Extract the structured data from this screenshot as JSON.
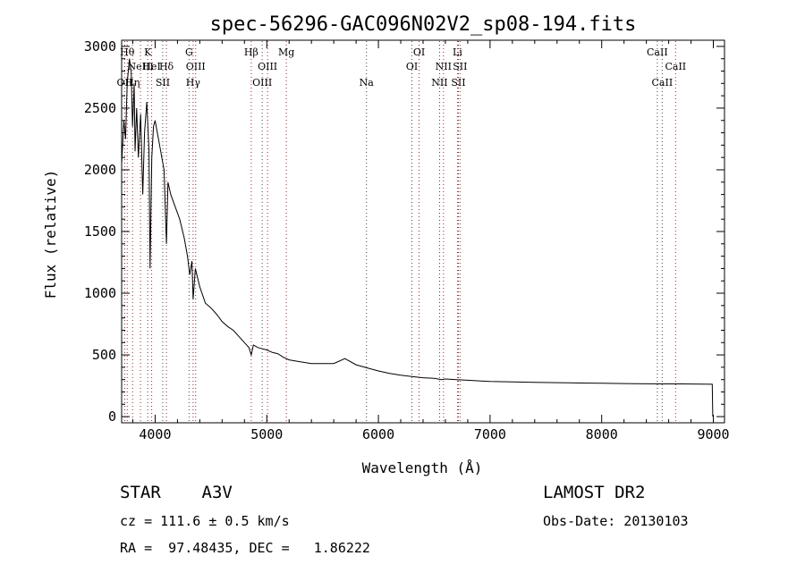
{
  "chart_data": {
    "type": "line",
    "title": "spec-56296-GAC096N02V2_sp08-194.fits",
    "xlabel": "Wavelength (Å)",
    "ylabel": "Flux (relative)",
    "xlim": [
      3700,
      9100
    ],
    "ylim": [
      -50,
      3050
    ],
    "xticks": [
      4000,
      5000,
      6000,
      7000,
      8000,
      9000
    ],
    "yticks": [
      0,
      500,
      1000,
      1500,
      2000,
      2500,
      3000
    ],
    "grid": false,
    "series": [
      {
        "x": [
          3700,
          3720,
          3735,
          3750,
          3770,
          3785,
          3798,
          3812,
          3820,
          3835,
          3850,
          3870,
          3889,
          3905,
          3925,
          3945,
          3955,
          3970,
          3985,
          4000,
          4020,
          4050,
          4080,
          4101,
          4115,
          4140,
          4180,
          4220,
          4260,
          4290,
          4310,
          4330,
          4340,
          4360,
          4400,
          4450,
          4500,
          4550,
          4600,
          4650,
          4700,
          4750,
          4800,
          4840,
          4861,
          4880,
          4920,
          4960,
          5000,
          5050,
          5100,
          5150,
          5200,
          5300,
          5400,
          5500,
          5600,
          5700,
          5800,
          5900,
          6000,
          6100,
          6200,
          6300,
          6400,
          6500,
          6563,
          6600,
          6700,
          6800,
          6900,
          7000,
          7200,
          7400,
          7600,
          7800,
          8000,
          8200,
          8400,
          8600,
          8800,
          8990,
          8995
        ],
        "y": [
          2050,
          2400,
          2250,
          2700,
          2900,
          2800,
          2350,
          2700,
          2150,
          2500,
          2100,
          2450,
          1800,
          2300,
          2550,
          2150,
          1200,
          2100,
          2350,
          2400,
          2300,
          2150,
          2000,
          1400,
          1900,
          1800,
          1700,
          1600,
          1450,
          1300,
          1150,
          1260,
          950,
          1200,
          1050,
          920,
          880,
          830,
          770,
          730,
          700,
          650,
          600,
          560,
          500,
          580,
          560,
          550,
          540,
          520,
          510,
          480,
          460,
          445,
          430,
          430,
          430,
          470,
          420,
          395,
          370,
          350,
          335,
          325,
          315,
          310,
          300,
          305,
          300,
          295,
          290,
          285,
          282,
          278,
          275,
          272,
          270,
          268,
          266,
          265,
          264,
          262,
          0
        ]
      }
    ],
    "lines": [
      {
        "x": 3727,
        "label": "OII",
        "row": 3,
        "style": "dotted",
        "color": "#444444"
      },
      {
        "x": 3750,
        "label": "Hθ",
        "row": 1,
        "style": "dotted",
        "color": "#aa2222"
      },
      {
        "x": 3798,
        "label": "Hη",
        "row": 3,
        "style": "dotted",
        "color": "#aa2222"
      },
      {
        "x": 3869,
        "label": "NeIII",
        "row": 2,
        "style": "dotted",
        "color": "#aa2222"
      },
      {
        "x": 3934,
        "label": "K",
        "row": 1,
        "style": "dotted",
        "color": "#444444"
      },
      {
        "x": 3969,
        "label": "HeI",
        "row": 2,
        "style": "dotted",
        "color": "#aa2222"
      },
      {
        "x": 4068,
        "label": "SII",
        "row": 3,
        "style": "dotted",
        "color": "#444444"
      },
      {
        "x": 4101,
        "label": "Hδ",
        "row": 2,
        "style": "dotted",
        "color": "#aa2222"
      },
      {
        "x": 4304,
        "label": "G",
        "row": 1,
        "style": "dotted",
        "color": "#444444"
      },
      {
        "x": 4340,
        "label": "Hγ",
        "row": 3,
        "style": "dotted",
        "color": "#aa2222"
      },
      {
        "x": 4363,
        "label": "OIII",
        "row": 2,
        "style": "dotted",
        "color": "#444444"
      },
      {
        "x": 4861,
        "label": "Hβ",
        "row": 1,
        "style": "dotted",
        "color": "#aa2222"
      },
      {
        "x": 4959,
        "label": "OIII",
        "row": 3,
        "style": "dotted",
        "color": "#444444"
      },
      {
        "x": 5007,
        "label": "OIII",
        "row": 2,
        "style": "dotted",
        "color": "#aa2222"
      },
      {
        "x": 5175,
        "label": "Mg",
        "row": 1,
        "style": "dotted",
        "color": "#aa2222"
      },
      {
        "x": 5893,
        "label": "Na",
        "row": 3,
        "style": "dotted",
        "color": "#444444"
      },
      {
        "x": 6300,
        "label": "OI",
        "row": 2,
        "style": "dotted",
        "color": "#444444"
      },
      {
        "x": 6364,
        "label": "OI",
        "row": 1,
        "style": "dotted",
        "color": "#aa2222"
      },
      {
        "x": 6548,
        "label": "NII",
        "row": 3,
        "style": "dotted",
        "color": "#444444"
      },
      {
        "x": 6583,
        "label": "NII",
        "row": 2,
        "style": "dotted",
        "color": "#aa2222"
      },
      {
        "x": 6708,
        "label": "Li",
        "row": 1,
        "style": "dotted",
        "color": "#aa2222"
      },
      {
        "x": 6716,
        "label": "SII",
        "row": 3,
        "style": "dotted",
        "color": "#444444"
      },
      {
        "x": 6731,
        "label": "SII",
        "row": 2,
        "style": "dotted",
        "color": "#aa2222"
      },
      {
        "x": 8498,
        "label": "CaII",
        "row": 1,
        "style": "dotted",
        "color": "#444444"
      },
      {
        "x": 8542,
        "label": "CaII",
        "row": 3,
        "style": "dotted",
        "color": "#444444"
      },
      {
        "x": 8662,
        "label": "CaII",
        "row": 2,
        "style": "dotted",
        "color": "#aa2222"
      }
    ]
  },
  "info": {
    "class_text": "STAR    A3V",
    "survey": "LAMOST DR2",
    "cz": "cz = 111.6 ± 0.5 km/s",
    "obs_date": "Obs-Date: 20130103",
    "radec": "RA =  97.48435, DEC =   1.86222"
  }
}
